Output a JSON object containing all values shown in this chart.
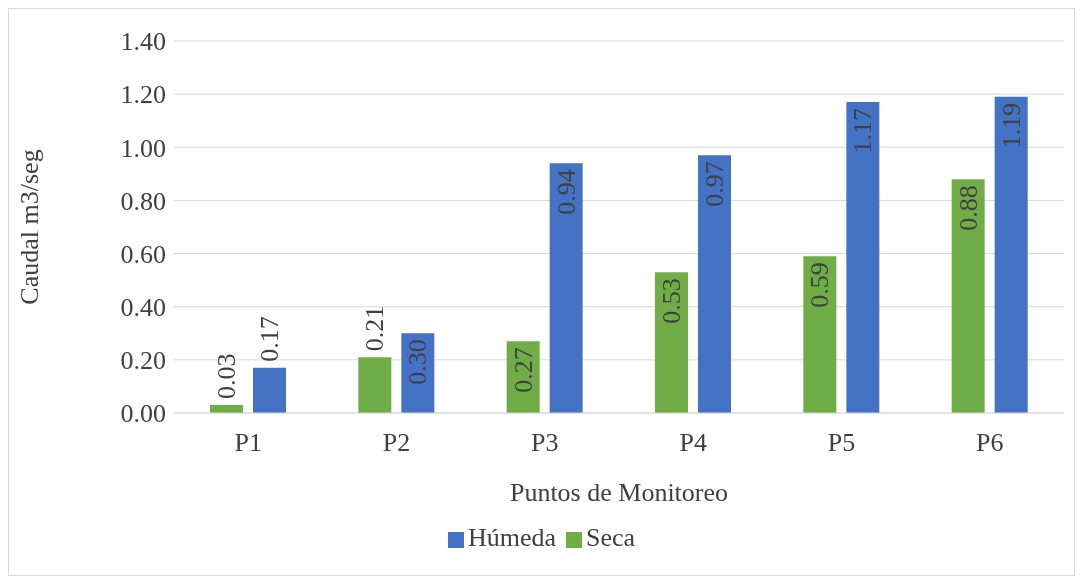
{
  "chart_data": {
    "type": "bar",
    "xlabel": "Puntos de Monitoreo",
    "ylabel": "Caudal m3/seg",
    "categories": [
      "P1",
      "P2",
      "P3",
      "P4",
      "P5",
      "P6"
    ],
    "series": [
      {
        "name": "Seca",
        "color": "#70ad47",
        "values": [
          0.03,
          0.21,
          0.27,
          0.53,
          0.59,
          0.88
        ],
        "value_labels": [
          "0.03",
          "0.21",
          "0.27",
          "0.53",
          "0.59",
          "0.88"
        ]
      },
      {
        "name": "Húmeda",
        "color": "#4472c4",
        "values": [
          0.17,
          0.3,
          0.94,
          0.97,
          1.17,
          1.19
        ],
        "value_labels": [
          "0.17",
          "0.30",
          "0.94",
          "0.97",
          "1.17",
          "1.19"
        ]
      }
    ],
    "ylim": [
      0,
      1.4
    ],
    "yticks": [
      {
        "value": 0,
        "label": "0.00"
      },
      {
        "value": 0.2,
        "label": "0.20"
      },
      {
        "value": 0.4,
        "label": "0.40"
      },
      {
        "value": 0.6,
        "label": "0.60"
      },
      {
        "value": 0.8,
        "label": "0.80"
      },
      {
        "value": 1.0,
        "label": "1.00"
      },
      {
        "value": 1.2,
        "label": "1.20"
      },
      {
        "value": 1.4,
        "label": "1.40"
      }
    ],
    "grid": "y",
    "legend": "bottom"
  }
}
